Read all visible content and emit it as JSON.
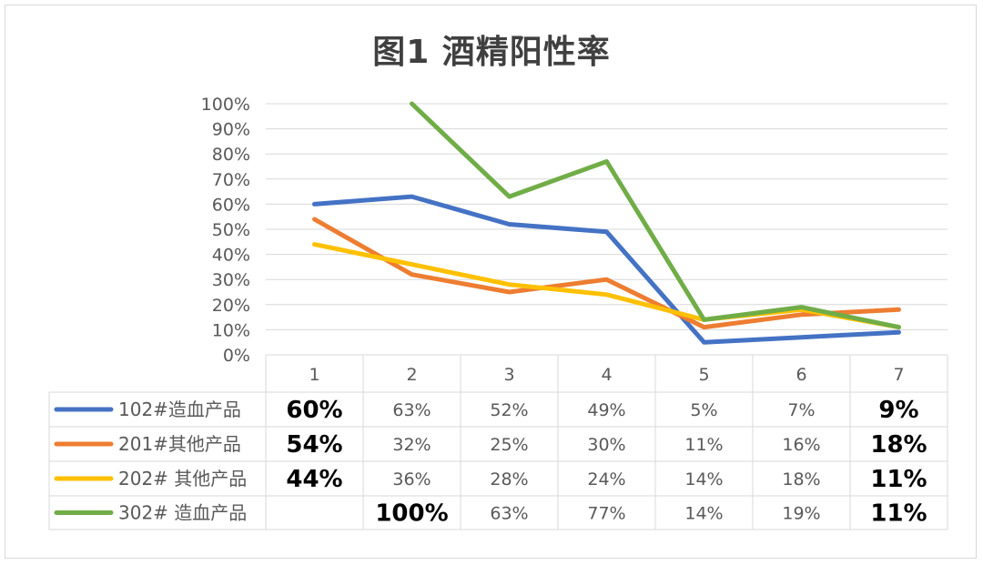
{
  "chart_data": {
    "type": "line",
    "title": "图1 酒精阳性率",
    "categories": [
      "1",
      "2",
      "3",
      "4",
      "5",
      "6",
      "7"
    ],
    "ylim": [
      0,
      1
    ],
    "y_ticks": [
      "0%",
      "10%",
      "20%",
      "30%",
      "40%",
      "50%",
      "60%",
      "70%",
      "80%",
      "90%",
      "100%"
    ],
    "grid": true,
    "legend": "data-table-below",
    "series": [
      {
        "name": "102#造血产品",
        "color": "#4472c4",
        "values": [
          0.6,
          0.63,
          0.52,
          0.49,
          0.05,
          0.07,
          0.09
        ],
        "labels": [
          "60%",
          "63%",
          "52%",
          "49%",
          "5%",
          "7%",
          "9%"
        ],
        "bold": [
          true,
          false,
          false,
          false,
          false,
          false,
          true
        ]
      },
      {
        "name": "201#其他产品",
        "color": "#ed7d31",
        "values": [
          0.54,
          0.32,
          0.25,
          0.3,
          0.11,
          0.16,
          0.18
        ],
        "labels": [
          "54%",
          "32%",
          "25%",
          "30%",
          "11%",
          "16%",
          "18%"
        ],
        "bold": [
          true,
          false,
          false,
          false,
          false,
          false,
          true
        ]
      },
      {
        "name": "202# 其他产品",
        "color": "#ffc000",
        "values": [
          0.44,
          0.36,
          0.28,
          0.24,
          0.14,
          0.18,
          0.11
        ],
        "labels": [
          "44%",
          "36%",
          "28%",
          "24%",
          "14%",
          "18%",
          "11%"
        ],
        "bold": [
          true,
          false,
          false,
          false,
          false,
          false,
          true
        ]
      },
      {
        "name": "302# 造血产品",
        "color": "#70ad47",
        "values": [
          null,
          1.0,
          0.63,
          0.77,
          0.14,
          0.19,
          0.11
        ],
        "labels": [
          "",
          "100%",
          "63%",
          "77%",
          "14%",
          "19%",
          "11%"
        ],
        "bold": [
          false,
          true,
          false,
          false,
          false,
          false,
          true
        ]
      }
    ]
  }
}
